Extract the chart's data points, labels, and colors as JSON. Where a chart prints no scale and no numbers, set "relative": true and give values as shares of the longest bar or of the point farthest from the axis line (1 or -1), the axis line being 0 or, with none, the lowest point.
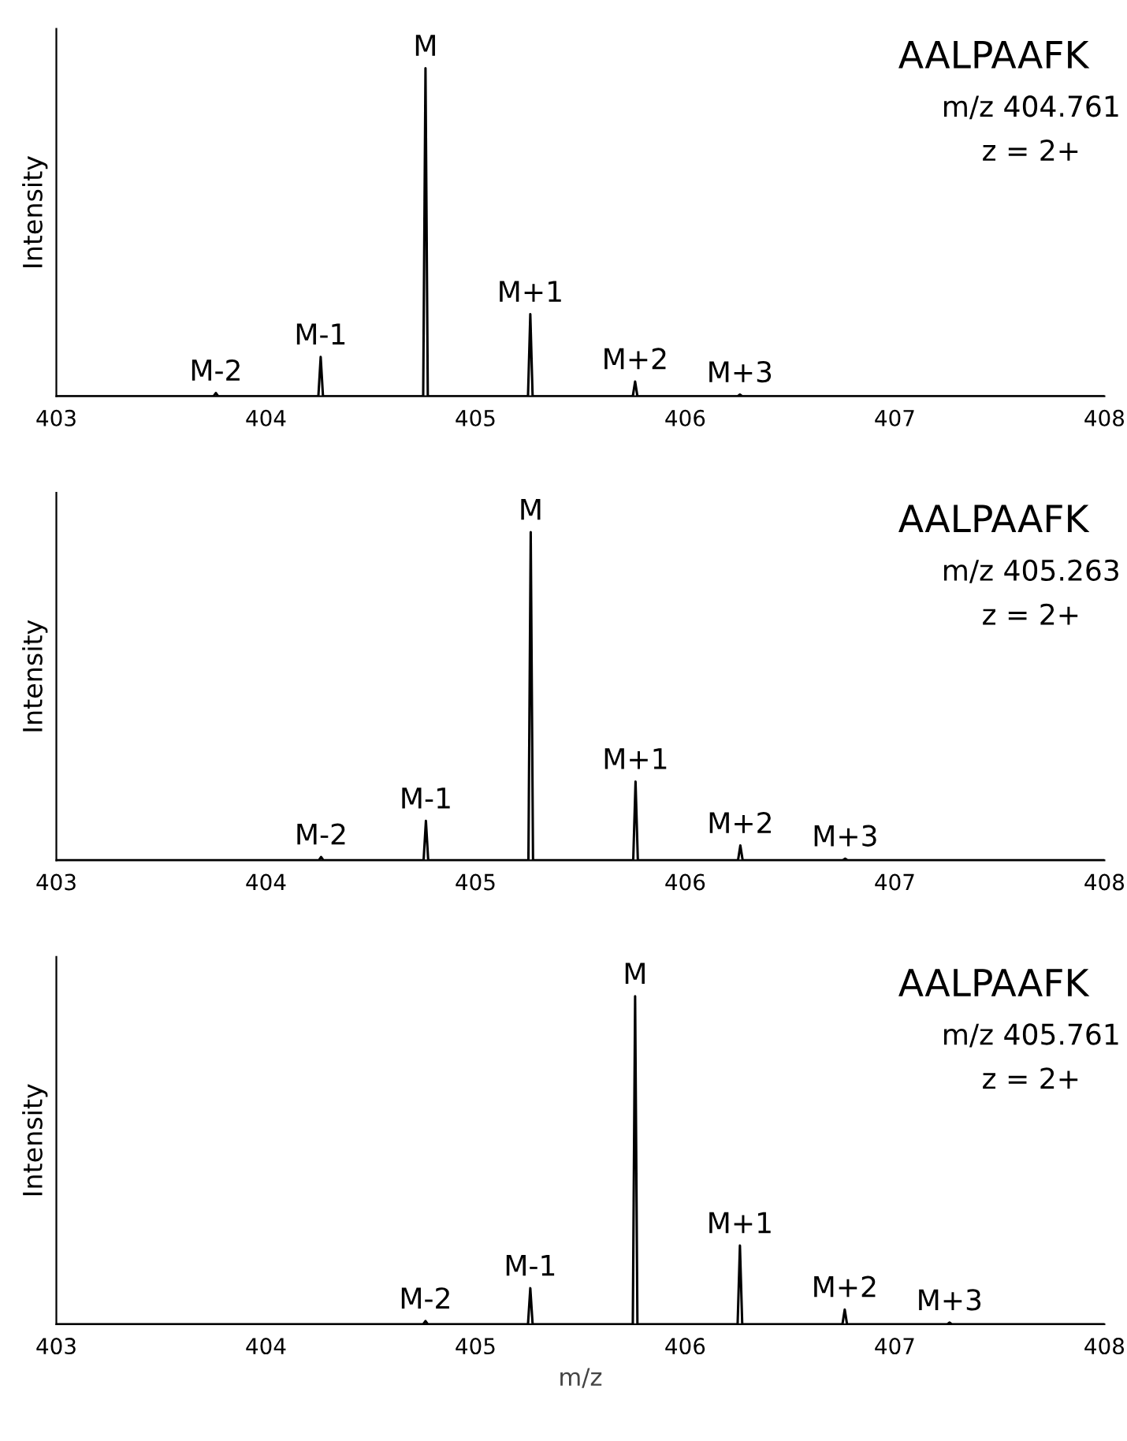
{
  "chart_data": [
    {
      "type": "line",
      "title": "AALPAAFK",
      "subtitle": "m/z 404.761",
      "ylabel": "Intensity",
      "relative": true,
      "xlim": [
        403,
        408
      ],
      "xticks": [
        403,
        404,
        405,
        406,
        407,
        408
      ],
      "grid": false,
      "marker": "none",
      "line_style": "solid",
      "series": [
        {
          "color": "#000000",
          "x": [
            403,
            403.75,
            403.761,
            403.772,
            404.25,
            404.261,
            404.272,
            404.75,
            404.761,
            404.772,
            405.25,
            405.261,
            405.272,
            405.75,
            405.761,
            405.772,
            406.25,
            406.261,
            406.272,
            408
          ],
          "values": [
            0,
            0,
            0.01,
            0,
            0,
            0.12,
            0,
            0,
            1,
            0,
            0,
            0.25,
            0,
            0,
            0.045,
            0,
            0,
            0.005,
            0,
            0
          ]
        }
      ],
      "annotations": [
        {
          "text": "M-2",
          "x": 403.761,
          "y": 0.01
        },
        {
          "text": "M-1",
          "x": 404.261,
          "y": 0.12
        },
        {
          "text": "M",
          "x": 404.761,
          "y": 1
        },
        {
          "text": "M+1",
          "x": 405.261,
          "y": 0.25
        },
        {
          "text": "M+2",
          "x": 405.761,
          "y": 0.045
        },
        {
          "text": "M+3",
          "x": 406.261,
          "y": 0.005
        },
        "z = 2+"
      ]
    },
    {
      "type": "line",
      "title": "AALPAAFK",
      "subtitle": "m/z 405.263",
      "ylabel": "Intensity",
      "relative": true,
      "xlim": [
        403,
        408
      ],
      "xticks": [
        403,
        404,
        405,
        406,
        407,
        408
      ],
      "grid": false,
      "marker": "none",
      "line_style": "solid",
      "series": [
        {
          "color": "#000000",
          "x": [
            403,
            404.252,
            404.263,
            404.274,
            404.752,
            404.763,
            404.774,
            405.252,
            405.263,
            405.274,
            405.752,
            405.763,
            405.774,
            406.252,
            406.263,
            406.274,
            406.752,
            406.763,
            406.774,
            408
          ],
          "values": [
            0,
            0,
            0.01,
            0,
            0,
            0.12,
            0,
            0,
            1,
            0,
            0,
            0.24,
            0,
            0,
            0.045,
            0,
            0,
            0.005,
            0,
            0
          ]
        }
      ],
      "annotations": [
        {
          "text": "M-2",
          "x": 404.263,
          "y": 0.01
        },
        {
          "text": "M-1",
          "x": 404.763,
          "y": 0.12
        },
        {
          "text": "M",
          "x": 405.263,
          "y": 1
        },
        {
          "text": "M+1",
          "x": 405.763,
          "y": 0.24
        },
        {
          "text": "M+2",
          "x": 406.263,
          "y": 0.045
        },
        {
          "text": "M+3",
          "x": 406.763,
          "y": 0.005
        },
        "z = 2+"
      ]
    },
    {
      "type": "line",
      "title": "AALPAAFK",
      "subtitle": "m/z 405.761",
      "ylabel": "Intensity",
      "xlabel": "m/z",
      "relative": true,
      "xlim": [
        403,
        408
      ],
      "xticks": [
        403,
        404,
        405,
        406,
        407,
        408
      ],
      "grid": false,
      "marker": "none",
      "line_style": "solid",
      "series": [
        {
          "color": "#000000",
          "x": [
            403,
            404.75,
            404.761,
            404.772,
            405.25,
            405.261,
            405.272,
            405.75,
            405.761,
            405.772,
            406.25,
            406.261,
            406.272,
            406.75,
            406.761,
            406.772,
            407.25,
            407.261,
            407.272,
            408
          ],
          "values": [
            0,
            0,
            0.01,
            0,
            0,
            0.11,
            0,
            0,
            1,
            0,
            0,
            0.24,
            0,
            0,
            0.045,
            0,
            0,
            0.005,
            0,
            0
          ]
        }
      ],
      "annotations": [
        {
          "text": "M-2",
          "x": 404.761,
          "y": 0.01
        },
        {
          "text": "M-1",
          "x": 405.261,
          "y": 0.11
        },
        {
          "text": "M",
          "x": 405.761,
          "y": 1
        },
        {
          "text": "M+1",
          "x": 406.261,
          "y": 0.24
        },
        {
          "text": "M+2",
          "x": 406.761,
          "y": 0.045
        },
        {
          "text": "M+3",
          "x": 407.261,
          "y": 0.005
        },
        "z = 2+"
      ]
    }
  ]
}
